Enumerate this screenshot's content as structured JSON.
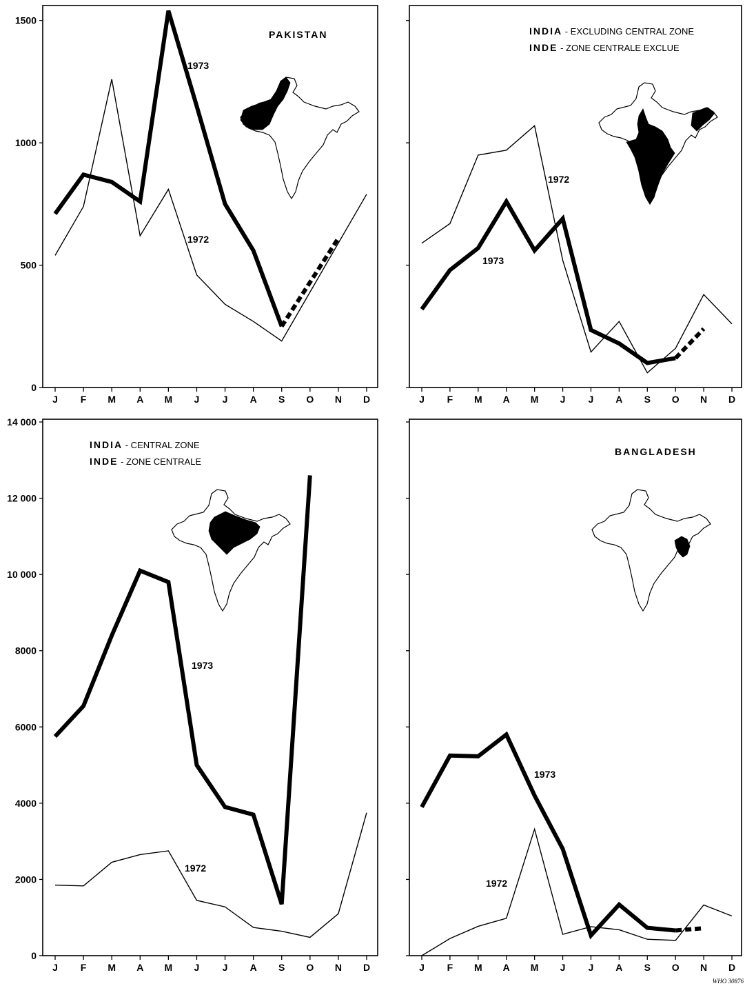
{
  "months": [
    "J",
    "F",
    "M",
    "A",
    "M",
    "J",
    "J",
    "A",
    "S",
    "O",
    "N",
    "D"
  ],
  "colors": {
    "ink": "#000000",
    "map_fill": "#000000"
  },
  "credit": "WHO 30876",
  "chart_data": [
    {
      "type": "line",
      "title_lines": [
        {
          "bold": "PAKISTAN",
          "rest": ""
        }
      ],
      "ylim": [
        0,
        1550
      ],
      "yticks": [
        0,
        500,
        1000,
        1500
      ],
      "ytick_labels": [
        "0",
        "500",
        "1000",
        "1500"
      ],
      "y_labels_shown": true,
      "map_icon": "map-pakistan-highlighted-icon",
      "series": [
        {
          "name": "1973",
          "stroke": "thick",
          "values": [
            710,
            870,
            840,
            760,
            1540,
            1150,
            750,
            560,
            250,
            null,
            null,
            null
          ],
          "dashed_segment": {
            "from": 250,
            "to": 610,
            "start_index": 8,
            "end_index": 10
          }
        },
        {
          "name": "1972",
          "stroke": "thin",
          "values": [
            540,
            740,
            1260,
            620,
            810,
            460,
            340,
            270,
            190,
            390,
            590,
            790
          ]
        }
      ],
      "annotations": [
        {
          "series": "1973",
          "text": "1973"
        },
        {
          "series": "1972",
          "text": "1972"
        }
      ]
    },
    {
      "type": "line",
      "title_lines": [
        {
          "bold": "INDIA",
          "rest": " - EXCLUDING CENTRAL ZONE"
        },
        {
          "bold": "INDE",
          "rest": " - ZONE CENTRALE EXCLUE"
        }
      ],
      "ylim": [
        0,
        1550
      ],
      "yticks": [
        0,
        500,
        1000,
        1500
      ],
      "ytick_labels": [
        "",
        "",
        "",
        ""
      ],
      "y_labels_shown": false,
      "map_icon": "map-india-excluding-central-icon",
      "series": [
        {
          "name": "1973",
          "stroke": "thick",
          "values": [
            320,
            480,
            570,
            760,
            560,
            690,
            235,
            180,
            100,
            120,
            null,
            null
          ],
          "dashed_segment": {
            "from": 120,
            "to": 240,
            "start_index": 9,
            "end_index": 10
          }
        },
        {
          "name": "1972",
          "stroke": "thin",
          "values": [
            590,
            670,
            950,
            970,
            1070,
            520,
            145,
            270,
            60,
            160,
            380,
            260
          ]
        }
      ],
      "annotations": [
        {
          "series": "1973",
          "text": "1973"
        },
        {
          "series": "1972",
          "text": "1972"
        }
      ]
    },
    {
      "type": "line",
      "title_lines": [
        {
          "bold": "INDIA",
          "rest": " - CENTRAL ZONE"
        },
        {
          "bold": "INDE",
          "rest": " - ZONE CENTRALE"
        }
      ],
      "ylim": [
        0,
        14000
      ],
      "yticks": [
        0,
        2000,
        4000,
        6000,
        8000,
        10000,
        12000,
        14000
      ],
      "ytick_labels": [
        "0",
        "2000",
        "4000",
        "6000",
        "8000",
        "10 000",
        "12 000",
        "14 000"
      ],
      "y_labels_shown": true,
      "map_icon": "map-india-central-zone-icon",
      "series": [
        {
          "name": "1973",
          "stroke": "thick",
          "values": [
            5750,
            6550,
            8400,
            10100,
            9800,
            5000,
            3900,
            3700,
            1350,
            12600,
            null,
            null
          ]
        },
        {
          "name": "1972",
          "stroke": "thin",
          "values": [
            1850,
            1830,
            2450,
            2650,
            2750,
            1450,
            1280,
            740,
            640,
            480,
            1100,
            3750
          ]
        }
      ],
      "annotations": [
        {
          "series": "1973",
          "text": "1973"
        },
        {
          "series": "1972",
          "text": "1972"
        }
      ]
    },
    {
      "type": "line",
      "title_lines": [
        {
          "bold": "BANGLADESH",
          "rest": ""
        }
      ],
      "ylim": [
        0,
        14000
      ],
      "yticks": [
        0,
        2000,
        4000,
        6000,
        8000,
        10000,
        12000,
        14000
      ],
      "ytick_labels": [
        "",
        "",
        "",
        "",
        "",
        "",
        "",
        ""
      ],
      "y_labels_shown": false,
      "map_icon": "map-bangladesh-highlighted-icon",
      "series": [
        {
          "name": "1973",
          "stroke": "thick",
          "values": [
            3900,
            5250,
            5230,
            5800,
            4200,
            2800,
            530,
            1340,
            730,
            660,
            null,
            null
          ],
          "dashed_segment": {
            "from": 660,
            "to": 720,
            "start_index": 9,
            "end_index": 10
          }
        },
        {
          "name": "1972",
          "stroke": "thin",
          "values": [
            0,
            450,
            770,
            980,
            3320,
            560,
            760,
            680,
            430,
            400,
            1330,
            1040
          ]
        }
      ],
      "annotations": [
        {
          "series": "1973",
          "text": "1973"
        },
        {
          "series": "1972",
          "text": "1972"
        }
      ]
    }
  ]
}
